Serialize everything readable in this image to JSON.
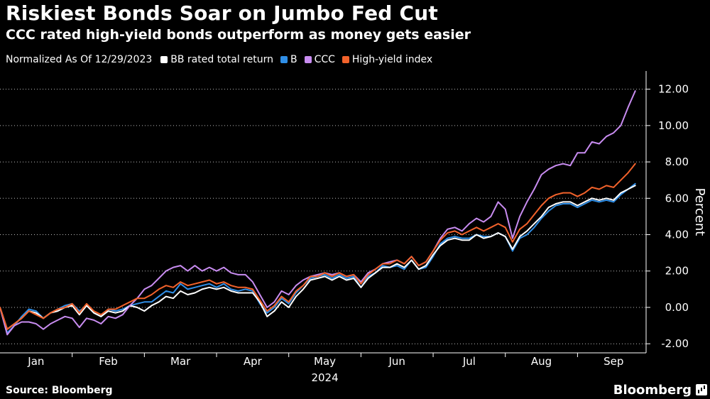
{
  "header": {
    "title": "Riskiest Bonds Soar on Jumbo Fed Cut",
    "subtitle": "CCC rated high-yield bonds outperform as money gets easier"
  },
  "legend": {
    "note": "Normalized As Of 12/29/2023",
    "items": [
      {
        "label": "BB rated total return",
        "color": "#ffffff"
      },
      {
        "label": "B",
        "color": "#2f8ee6"
      },
      {
        "label": "CCC",
        "color": "#c88cf0"
      },
      {
        "label": "High-yield index",
        "color": "#f2622b"
      }
    ]
  },
  "footer": {
    "source": "Source: Bloomberg",
    "brand": "Bloomberg"
  },
  "chart_data": {
    "type": "line",
    "title": "Riskiest Bonds Soar on Jumbo Fed Cut",
    "subtitle": "CCC rated high-yield bonds outperform as money gets easier",
    "xlabel": "2024",
    "ylabel": "Percent",
    "ylim": [
      -2.5,
      13
    ],
    "yticks": [
      -2,
      0,
      2,
      4,
      6,
      8,
      10,
      12
    ],
    "ytick_labels": [
      "-2.00",
      "0.00",
      "2.00",
      "4.00",
      "6.00",
      "8.00",
      "10.00",
      "12.00"
    ],
    "xlim": [
      0,
      8.95
    ],
    "xtick_positions": [
      0.5,
      1.5,
      2.5,
      3.5,
      4.5,
      5.5,
      6.5,
      7.5,
      8.5
    ],
    "xtick_labels": [
      "Jan",
      "Feb",
      "Mar",
      "Apr",
      "May",
      "Jun",
      "Jul",
      "Aug",
      "Sep"
    ],
    "x": [
      0,
      0.1,
      0.2,
      0.3,
      0.4,
      0.5,
      0.6,
      0.7,
      0.8,
      0.9,
      1.0,
      1.1,
      1.2,
      1.3,
      1.4,
      1.5,
      1.6,
      1.7,
      1.8,
      1.9,
      2.0,
      2.1,
      2.2,
      2.3,
      2.4,
      2.5,
      2.6,
      2.7,
      2.8,
      2.9,
      3.0,
      3.1,
      3.2,
      3.3,
      3.4,
      3.5,
      3.6,
      3.7,
      3.8,
      3.9,
      4.0,
      4.1,
      4.2,
      4.3,
      4.4,
      4.5,
      4.6,
      4.7,
      4.8,
      4.9,
      5.0,
      5.1,
      5.2,
      5.3,
      5.4,
      5.5,
      5.6,
      5.7,
      5.8,
      5.9,
      6.0,
      6.1,
      6.2,
      6.3,
      6.4,
      6.5,
      6.6,
      6.7,
      6.8,
      6.9,
      7.0,
      7.1,
      7.2,
      7.3,
      7.4,
      7.5,
      7.6,
      7.7,
      7.8,
      7.9,
      8.0,
      8.1,
      8.2,
      8.3,
      8.4,
      8.5,
      8.6,
      8.7,
      8.8
    ],
    "series": [
      {
        "name": "BB rated total return",
        "color": "#ffffff",
        "values": [
          0,
          -1.2,
          -0.9,
          -0.6,
          -0.2,
          -0.3,
          -0.6,
          -0.3,
          -0.2,
          0.0,
          0.1,
          -0.4,
          0.1,
          -0.3,
          -0.5,
          -0.2,
          -0.3,
          -0.2,
          0.1,
          0.0,
          -0.2,
          0.1,
          0.3,
          0.6,
          0.5,
          0.9,
          0.7,
          0.8,
          1.0,
          1.1,
          1.0,
          1.1,
          0.9,
          0.8,
          0.8,
          0.8,
          0.3,
          -0.5,
          -0.2,
          0.3,
          0.0,
          0.6,
          1.0,
          1.5,
          1.6,
          1.7,
          1.5,
          1.7,
          1.5,
          1.6,
          1.1,
          1.6,
          1.9,
          2.2,
          2.2,
          2.4,
          2.2,
          2.6,
          2.1,
          2.3,
          2.9,
          3.4,
          3.7,
          3.8,
          3.7,
          3.7,
          4.0,
          3.8,
          3.9,
          4.1,
          3.9,
          3.2,
          3.9,
          4.2,
          4.6,
          5.0,
          5.5,
          5.7,
          5.8,
          5.8,
          5.6,
          5.8,
          6.0,
          5.9,
          6.0,
          5.9,
          6.3,
          6.5,
          6.7
        ]
      },
      {
        "name": "B",
        "color": "#2f8ee6",
        "values": [
          0,
          -1.4,
          -1.0,
          -0.5,
          -0.1,
          -0.2,
          -0.6,
          -0.3,
          -0.1,
          0.1,
          0.2,
          -0.2,
          0.1,
          -0.3,
          -0.5,
          -0.1,
          -0.2,
          -0.1,
          0.1,
          0.2,
          0.3,
          0.3,
          0.6,
          0.9,
          0.8,
          1.3,
          1.0,
          1.1,
          1.2,
          1.3,
          1.1,
          1.3,
          1.0,
          0.9,
          1.0,
          0.9,
          0.2,
          -0.3,
          0.0,
          0.5,
          0.2,
          0.8,
          1.2,
          1.6,
          1.7,
          1.8,
          1.6,
          1.8,
          1.6,
          1.7,
          1.1,
          1.7,
          1.9,
          2.3,
          2.2,
          2.3,
          2.1,
          2.6,
          2.1,
          2.2,
          2.8,
          3.5,
          3.8,
          3.9,
          3.8,
          3.8,
          4.0,
          3.9,
          3.9,
          4.1,
          3.9,
          3.1,
          3.8,
          4.0,
          4.4,
          4.9,
          5.3,
          5.6,
          5.7,
          5.7,
          5.5,
          5.7,
          5.9,
          5.8,
          5.9,
          5.8,
          6.2,
          6.5,
          6.8
        ]
      },
      {
        "name": "CCC",
        "color": "#c88cf0",
        "values": [
          0,
          -1.5,
          -1.0,
          -0.8,
          -0.8,
          -0.9,
          -1.2,
          -0.9,
          -0.7,
          -0.5,
          -0.6,
          -1.1,
          -0.6,
          -0.7,
          -0.9,
          -0.5,
          -0.6,
          -0.4,
          0.1,
          0.5,
          1.0,
          1.2,
          1.6,
          2.0,
          2.2,
          2.3,
          2.0,
          2.3,
          2.0,
          2.2,
          2.0,
          2.2,
          1.9,
          1.8,
          1.8,
          1.4,
          0.7,
          0.0,
          0.3,
          0.9,
          0.7,
          1.2,
          1.5,
          1.7,
          1.8,
          1.9,
          1.8,
          1.9,
          1.7,
          1.8,
          1.4,
          1.9,
          2.1,
          2.4,
          2.5,
          2.6,
          2.4,
          2.8,
          2.3,
          2.5,
          3.1,
          3.8,
          4.3,
          4.4,
          4.2,
          4.6,
          4.9,
          4.7,
          5.0,
          5.8,
          5.4,
          3.8,
          5.0,
          5.8,
          6.5,
          7.3,
          7.6,
          7.8,
          7.9,
          7.8,
          8.5,
          8.5,
          9.1,
          9.0,
          9.4,
          9.6,
          10.0,
          11.0,
          11.9
        ]
      },
      {
        "name": "High-yield index",
        "color": "#f2622b",
        "values": [
          0,
          -1.2,
          -0.9,
          -0.6,
          -0.2,
          -0.4,
          -0.6,
          -0.3,
          -0.1,
          0.0,
          0.2,
          -0.3,
          0.2,
          -0.2,
          -0.4,
          -0.1,
          -0.1,
          0.1,
          0.3,
          0.5,
          0.5,
          0.7,
          1.0,
          1.2,
          1.1,
          1.4,
          1.2,
          1.3,
          1.4,
          1.5,
          1.3,
          1.4,
          1.2,
          1.1,
          1.1,
          1.0,
          0.4,
          -0.2,
          0.1,
          0.6,
          0.3,
          0.9,
          1.2,
          1.7,
          1.7,
          1.9,
          1.7,
          1.9,
          1.7,
          1.8,
          1.3,
          1.8,
          2.1,
          2.4,
          2.4,
          2.6,
          2.4,
          2.8,
          2.3,
          2.5,
          3.1,
          3.7,
          4.1,
          4.2,
          4.0,
          4.2,
          4.4,
          4.2,
          4.4,
          4.6,
          4.4,
          3.6,
          4.3,
          4.6,
          5.1,
          5.6,
          6.0,
          6.2,
          6.3,
          6.3,
          6.1,
          6.3,
          6.6,
          6.5,
          6.7,
          6.6,
          7.0,
          7.4,
          7.9
        ]
      }
    ]
  }
}
